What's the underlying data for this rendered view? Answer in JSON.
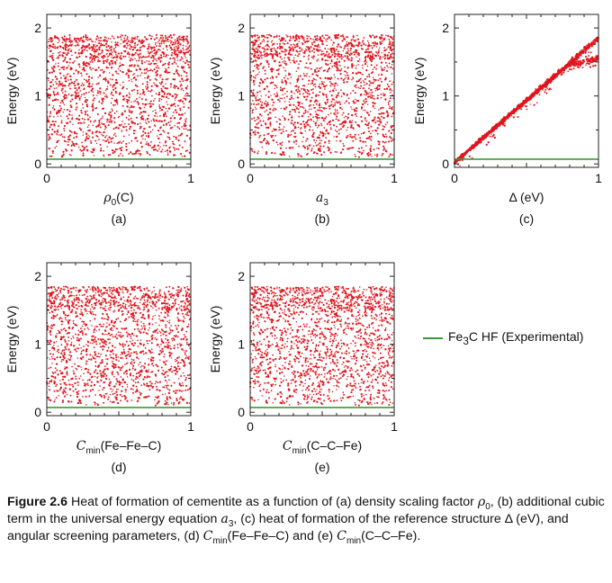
{
  "caption": {
    "label": "Figure 2.6",
    "text_a": "Heat of formation of cementite as a function of (a) density scaling factor ",
    "rho": "ρ",
    "rho_sub": "0",
    "text_b": ", (b) additional cubic term in the universal energy equation ",
    "a": "a",
    "a_sub": "3",
    "text_c": ", (c) heat of formation of the reference structure Δ (eV), and angular screening parameters, (d) ",
    "cmin1": "C",
    "cmin1_sub": "min",
    "text_d": "(Fe–Fe–C) and (e) ",
    "cmin2": "C",
    "cmin2_sub": "min",
    "text_e": "(C–C–Fe)."
  },
  "legend": {
    "line_label": "Fe",
    "line_label_sub": "3",
    "line_label_rest": "C HF (Experimental)",
    "line_color": "#3a9a3a"
  },
  "chart_data": [
    {
      "type": "scatter",
      "panel_label": "(a)",
      "xlabel": "ρ",
      "xlabel_sub": "0",
      "xlabel_rest": "(C)",
      "ylabel": "Energy (eV)",
      "xlim": [
        0,
        1
      ],
      "ylim": [
        -0.05,
        2.2
      ],
      "xticks": [
        "0",
        "1"
      ],
      "yticks": [
        "0",
        "1",
        "2"
      ],
      "pattern": "band",
      "band_y": [
        0.1,
        1.9
      ],
      "point_count": 1800,
      "series_color": "#e0161e",
      "reference_line_y": 0.07
    },
    {
      "type": "scatter",
      "panel_label": "(b)",
      "xlabel": "a",
      "xlabel_sub": "3",
      "xlabel_rest": "",
      "ylabel": "Energy (eV)",
      "xlim": [
        0,
        1
      ],
      "ylim": [
        -0.05,
        2.2
      ],
      "xticks": [
        "0",
        "1"
      ],
      "yticks": [
        "0",
        "1",
        "2"
      ],
      "pattern": "band",
      "band_y": [
        0.1,
        1.9
      ],
      "point_count": 1800,
      "series_color": "#e0161e",
      "reference_line_y": 0.07
    },
    {
      "type": "scatter",
      "panel_label": "(c)",
      "xlabel": "Δ (eV)",
      "xlabel_sub": "",
      "xlabel_rest": "",
      "ylabel": "Energy (eV)",
      "xlim": [
        0,
        1
      ],
      "ylim": [
        -0.05,
        2.2
      ],
      "xticks": [
        "0",
        "1"
      ],
      "yticks": [
        "0",
        "1",
        "2"
      ],
      "pattern": "linear",
      "line_y0": 0.02,
      "line_y1": 1.85,
      "branch_start_x": 0.78,
      "branch_end_y": 1.55,
      "point_count": 2400,
      "series_color": "#e0161e",
      "reference_line_y": 0.07
    },
    {
      "type": "scatter",
      "panel_label": "(d)",
      "xlabel": "C",
      "xlabel_sub": "min",
      "xlabel_rest": "(Fe–Fe–C)",
      "ylabel": "Energy (eV)",
      "xlim": [
        0,
        1
      ],
      "ylim": [
        -0.05,
        2.2
      ],
      "xticks": [
        "0",
        "1"
      ],
      "yticks": [
        "0",
        "1",
        "2"
      ],
      "pattern": "band",
      "band_y": [
        0.1,
        1.85
      ],
      "point_count": 1800,
      "series_color": "#e0161e",
      "reference_line_y": 0.07
    },
    {
      "type": "scatter",
      "panel_label": "(e)",
      "xlabel": "C",
      "xlabel_sub": "min",
      "xlabel_rest": "(C–C–Fe)",
      "ylabel": "Energy (eV)",
      "xlim": [
        0,
        1
      ],
      "ylim": [
        -0.05,
        2.2
      ],
      "xticks": [
        "0",
        "1"
      ],
      "yticks": [
        "0",
        "1",
        "2"
      ],
      "pattern": "band",
      "band_y": [
        0.1,
        1.85
      ],
      "point_count": 1800,
      "series_color": "#e0161e",
      "reference_line_y": 0.07
    }
  ]
}
